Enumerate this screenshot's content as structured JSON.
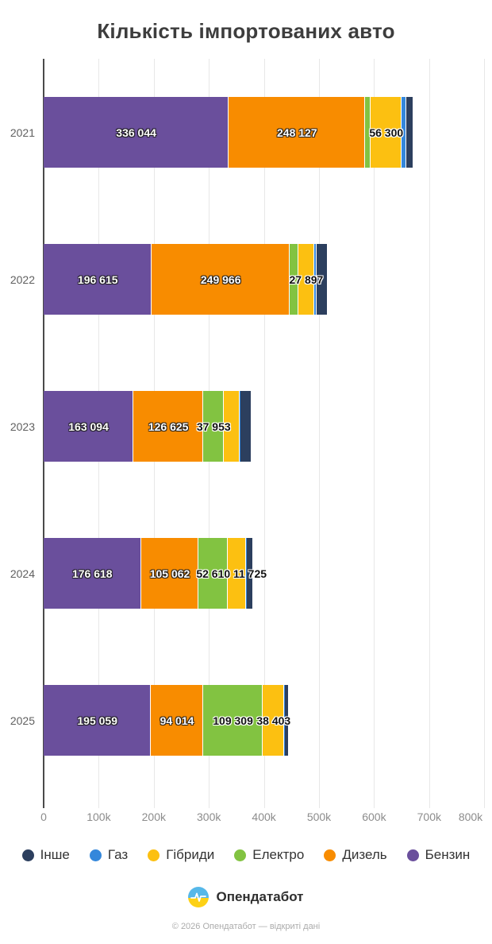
{
  "title": "Кількість імпортованих авто",
  "chart_data": {
    "type": "bar",
    "orientation": "horizontal",
    "stacked": true,
    "title": "Кількість імпортованих авто",
    "categories": [
      "2021",
      "2022",
      "2023",
      "2024",
      "2025"
    ],
    "series": [
      {
        "name": "Бензин",
        "color": "#6a4f9c",
        "label_style": "light",
        "values": [
          336044,
          196615,
          163094,
          176618,
          195059
        ],
        "labels": [
          "336 044",
          "196 615",
          "163 094",
          "176 618",
          "195 059"
        ]
      },
      {
        "name": "Дизель",
        "color": "#f88c00",
        "label_style": "light",
        "values": [
          248127,
          249966,
          126625,
          105062,
          94014
        ],
        "labels": [
          "248 127",
          "249 966",
          "126 625",
          "105 062",
          "94 014"
        ]
      },
      {
        "name": "Електро",
        "color": "#82c341",
        "label_style": "dark",
        "values": [
          9800,
          16300,
          37953,
          52610,
          109309
        ],
        "labels": [
          null,
          null,
          "37 953",
          "52 610",
          "109 309"
        ]
      },
      {
        "name": "Гібриди",
        "color": "#fcc011",
        "label_style": "dark",
        "values": [
          56300,
          27897,
          28500,
          33600,
          38403
        ],
        "labels": [
          "56 300",
          "27 897",
          null,
          null,
          "38 403"
        ]
      },
      {
        "name": "Газ",
        "color": "#3487db",
        "label_style": "light",
        "values": [
          8300,
          4300,
          800,
          900,
          600
        ],
        "labels": [
          null,
          null,
          null,
          null,
          null
        ]
      },
      {
        "name": "Інше",
        "color": "#2c3f5e",
        "label_style": "dark",
        "values": [
          12200,
          20600,
          20700,
          11725,
          7200
        ],
        "labels": [
          null,
          null,
          null,
          "11 725",
          null
        ]
      }
    ],
    "x_ticks": [
      "0",
      "100k",
      "200k",
      "300k",
      "400k",
      "500k",
      "600k",
      "700k",
      "800k"
    ],
    "xlim": [
      0,
      800000
    ],
    "grid": true,
    "legend_position": "bottom"
  },
  "legend": {
    "items": [
      {
        "label": "Інше",
        "color": "#2c3f5e"
      },
      {
        "label": "Газ",
        "color": "#3487db"
      },
      {
        "label": "Гібриди",
        "color": "#fcc011"
      },
      {
        "label": "Електро",
        "color": "#82c341"
      },
      {
        "label": "Дизель",
        "color": "#f88c00"
      },
      {
        "label": "Бензин",
        "color": "#6a4f9c"
      }
    ]
  },
  "footer": {
    "brand": "Опендатабот",
    "copyright": "© 2026 Опендатабот — відкриті дані"
  }
}
